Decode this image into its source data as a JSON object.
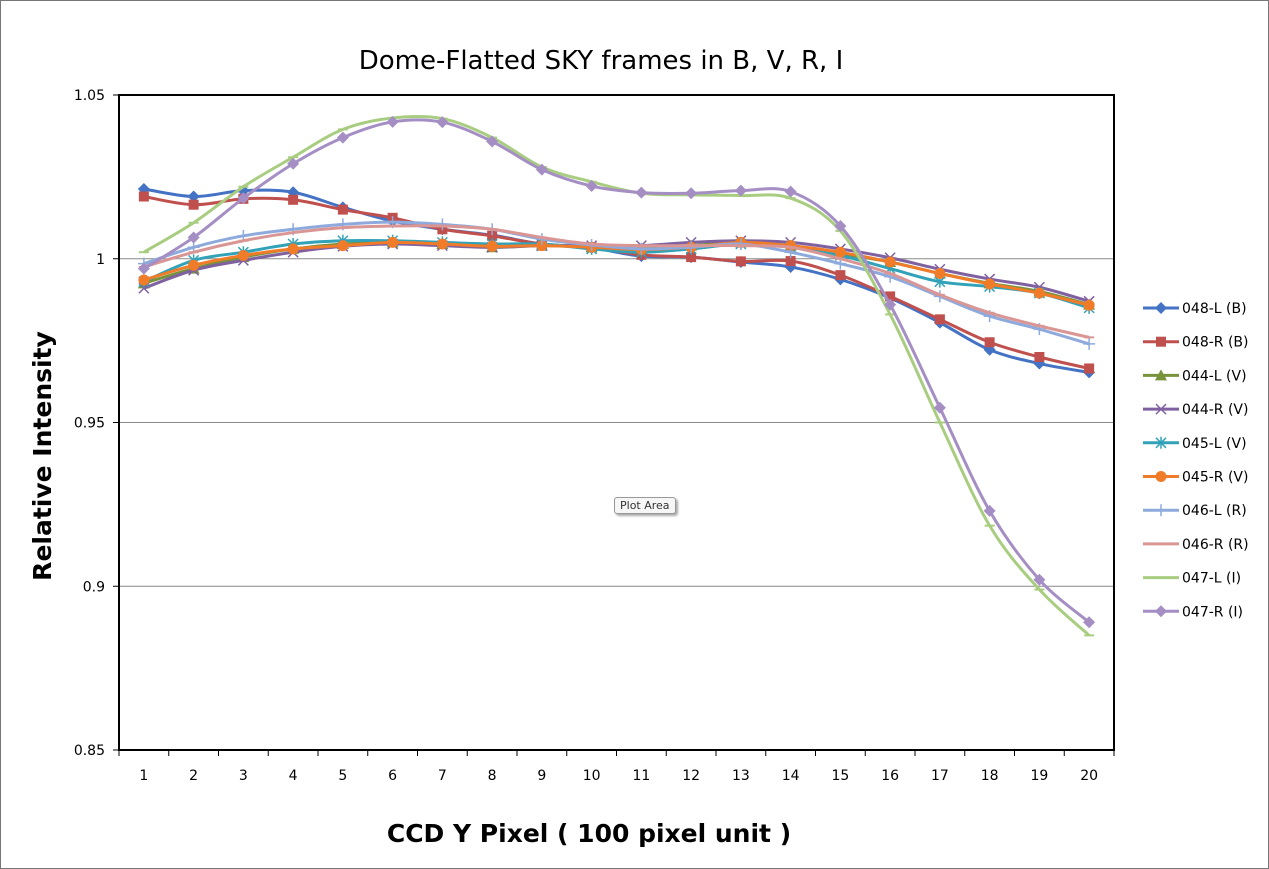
{
  "tooltip": "Plot Area",
  "chart_data": {
    "type": "line",
    "title": "Dome-Flatted SKY frames in B, V, R, I",
    "xlabel": "CCD Y Pixel  ( 100 pixel unit )",
    "ylabel": "Relative Intensity",
    "x": [
      1,
      2,
      3,
      4,
      5,
      6,
      7,
      8,
      9,
      10,
      11,
      12,
      13,
      14,
      15,
      16,
      17,
      18,
      19,
      20
    ],
    "ylim": [
      0.85,
      1.05
    ],
    "yticks": [
      0.85,
      0.9,
      0.95,
      1,
      1.05
    ],
    "ytick_labels": [
      "0.85",
      "0.9",
      "0.95",
      "1",
      "1.05"
    ],
    "grid": "horizontal major",
    "legend_position": "right",
    "series": [
      {
        "name": "048-L (B)",
        "color": "#4472C4",
        "marker": "diamond",
        "values": [
          1.0213,
          1.019,
          1.0208,
          1.0203,
          1.0157,
          1.0115,
          1.009,
          1.0072,
          1.0045,
          1.0033,
          1.0008,
          1.0005,
          0.999,
          0.9975,
          0.9937,
          0.988,
          0.9805,
          0.9722,
          0.968,
          0.9653
        ]
      },
      {
        "name": "048-R (B)",
        "color": "#C0504D",
        "marker": "square",
        "values": [
          1.019,
          1.0165,
          1.0183,
          1.018,
          1.015,
          1.0125,
          1.009,
          1.007,
          1.0045,
          1.0035,
          1.0012,
          1.0005,
          0.9992,
          0.9993,
          0.995,
          0.9885,
          0.9815,
          0.9745,
          0.97,
          0.9665
        ]
      },
      {
        "name": "044-L (V)",
        "color": "#77933C",
        "marker": "triangle",
        "values": [
          0.9925,
          0.997,
          1.0005,
          1.003,
          1.0045,
          1.005,
          1.0045,
          1.0035,
          1.004,
          1.0035,
          1.003,
          1.004,
          1.005,
          1.004,
          1.0015,
          0.999,
          0.9955,
          0.9925,
          0.99,
          0.986
        ]
      },
      {
        "name": "044-R (V)",
        "color": "#7F60A0",
        "marker": "x",
        "values": [
          0.991,
          0.9965,
          0.9995,
          1.002,
          1.0038,
          1.0045,
          1.004,
          1.0035,
          1.004,
          1.004,
          1.004,
          1.005,
          1.0055,
          1.005,
          1.003,
          1.0003,
          0.9968,
          0.9938,
          0.9913,
          0.987
        ]
      },
      {
        "name": "045-L (V)",
        "color": "#31A2B8",
        "marker": "star",
        "values": [
          0.993,
          0.9995,
          1.002,
          1.0045,
          1.0055,
          1.0055,
          1.005,
          1.0045,
          1.0045,
          1.003,
          1.002,
          1.003,
          1.0045,
          1.0035,
          1.001,
          0.997,
          0.993,
          0.9915,
          0.9895,
          0.985
        ]
      },
      {
        "name": "045-R (V)",
        "color": "#F07C2A",
        "marker": "circle",
        "values": [
          0.9935,
          0.998,
          1.001,
          1.003,
          1.004,
          1.005,
          1.0045,
          1.0038,
          1.004,
          1.0035,
          1.0028,
          1.0035,
          1.005,
          1.004,
          1.002,
          0.999,
          0.9955,
          0.9923,
          0.9895,
          0.9858
        ]
      },
      {
        "name": "046-L (R)",
        "color": "#8EAADC",
        "marker": "plus",
        "values": [
          0.9985,
          1.0035,
          1.007,
          1.009,
          1.0105,
          1.0112,
          1.0105,
          1.009,
          1.006,
          1.0042,
          1.003,
          1.0035,
          1.0045,
          1.002,
          0.9985,
          0.9945,
          0.9885,
          0.9825,
          0.9785,
          0.974
        ]
      },
      {
        "name": "046-R (R)",
        "color": "#DA9694",
        "marker": "dash",
        "values": [
          0.9975,
          1.002,
          1.0055,
          1.008,
          1.0095,
          1.01,
          1.01,
          1.009,
          1.0065,
          1.0045,
          1.004,
          1.004,
          1.004,
          1.0035,
          1.0,
          0.9955,
          0.989,
          0.9835,
          0.9795,
          0.976
        ]
      },
      {
        "name": "047-L (I)",
        "color": "#A9CD80",
        "marker": "dash",
        "values": [
          1.002,
          1.011,
          1.022,
          1.031,
          1.0395,
          1.043,
          1.0428,
          1.037,
          1.028,
          1.0235,
          1.02,
          1.0195,
          1.0193,
          1.0185,
          1.0085,
          0.983,
          0.95,
          0.9185,
          0.899,
          0.885
        ]
      },
      {
        "name": "047-R (I)",
        "color": "#A48EC4",
        "marker": "diamond",
        "values": [
          0.997,
          1.0065,
          1.0185,
          1.029,
          1.037,
          1.0418,
          1.0417,
          1.0358,
          1.0272,
          1.0222,
          1.0202,
          1.02,
          1.0208,
          1.0205,
          1.01,
          0.986,
          0.9545,
          0.923,
          0.902,
          0.889
        ]
      }
    ]
  }
}
